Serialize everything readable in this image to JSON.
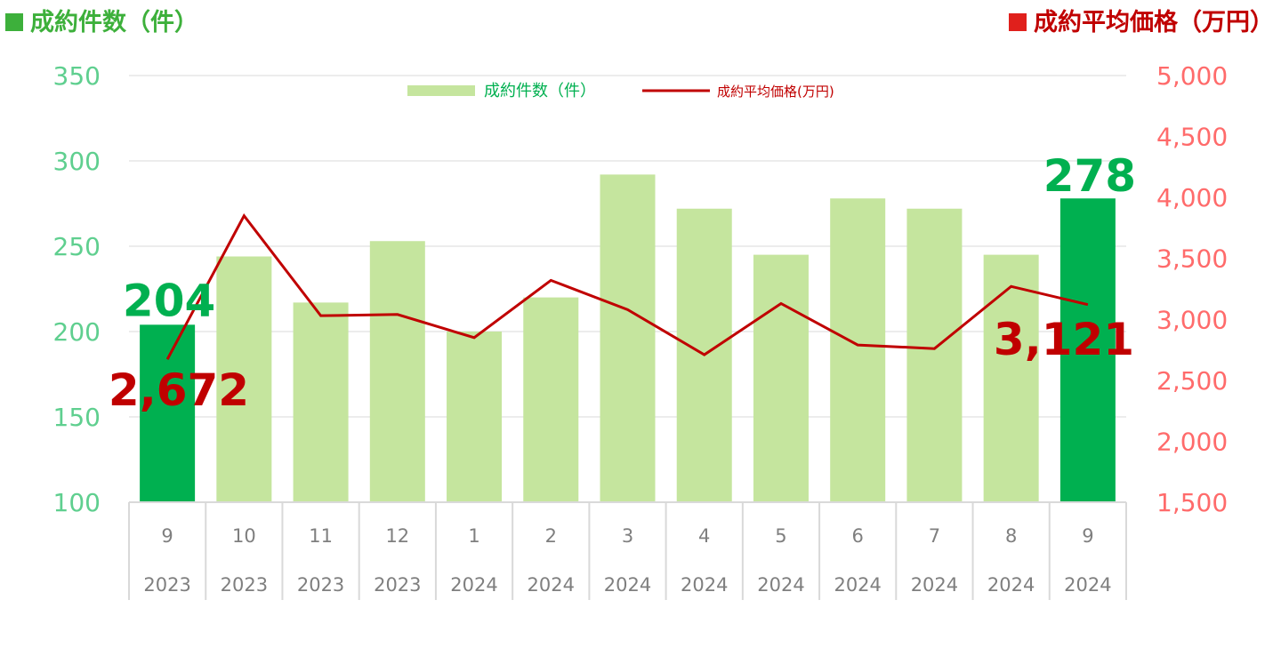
{
  "titles": {
    "left": "成約件数（件）",
    "right": "成約平均価格（万円）"
  },
  "colors": {
    "bar": "#c5e59e",
    "bar_highlight": "#00b050",
    "line": "#c00000",
    "left_axis_text": "#5fcf8f",
    "right_axis_text": "#ff6b6b",
    "highlight_count_label": "#00b050",
    "highlight_price_label": "#c00000",
    "legend_bar_text": "#00b050",
    "legend_line_text": "#c00000",
    "category_text": "#7f7f7f",
    "grid": "#d9d9d9"
  },
  "chart_data": {
    "type": "bar",
    "legend": {
      "placement": "top-center"
    },
    "grid": true,
    "categories": [
      {
        "month": "9",
        "year": "2023"
      },
      {
        "month": "10",
        "year": "2023"
      },
      {
        "month": "11",
        "year": "2023"
      },
      {
        "month": "12",
        "year": "2023"
      },
      {
        "month": "1",
        "year": "2024"
      },
      {
        "month": "2",
        "year": "2024"
      },
      {
        "month": "3",
        "year": "2024"
      },
      {
        "month": "4",
        "year": "2024"
      },
      {
        "month": "5",
        "year": "2024"
      },
      {
        "month": "6",
        "year": "2024"
      },
      {
        "month": "7",
        "year": "2024"
      },
      {
        "month": "8",
        "year": "2024"
      },
      {
        "month": "9",
        "year": "2024"
      }
    ],
    "series": [
      {
        "name": "成約件数（件）",
        "type": "bar",
        "axis": "left",
        "values": [
          204,
          244,
          217,
          253,
          200,
          220,
          292,
          272,
          245,
          278,
          272,
          245,
          278
        ],
        "highlight": [
          0,
          12
        ]
      },
      {
        "name": "成約平均価格(万円)",
        "type": "line",
        "axis": "right",
        "values": [
          2672,
          3850,
          3030,
          3040,
          2850,
          3320,
          3080,
          2710,
          3130,
          2790,
          2760,
          3270,
          3121
        ]
      }
    ],
    "left_axis": {
      "min": 100,
      "max": 350,
      "step": 50,
      "ticks": [
        "100",
        "150",
        "200",
        "250",
        "300",
        "350"
      ]
    },
    "right_axis": {
      "min": 1500,
      "max": 5000,
      "step": 500,
      "ticks": [
        "1,500",
        "2,000",
        "2,500",
        "3,000",
        "3,500",
        "4,000",
        "4,500",
        "5,000"
      ]
    },
    "annotations": [
      {
        "text": "204",
        "series": 0,
        "index": 0
      },
      {
        "text": "278",
        "series": 0,
        "index": 12
      },
      {
        "text": "2,672",
        "series": 1,
        "index": 0
      },
      {
        "text": "3,121",
        "series": 1,
        "index": 12
      }
    ]
  }
}
